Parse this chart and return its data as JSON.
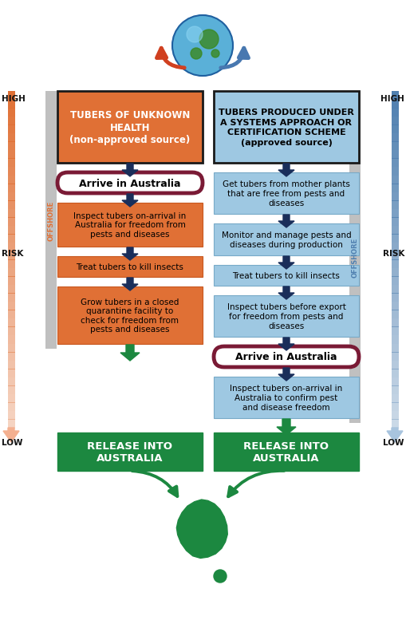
{
  "fig_width": 5.09,
  "fig_height": 8.03,
  "bg_color": "#ffffff",
  "col1_header": "TUBERS OF UNKNOWN\nHEALTH\n(non-approved source)",
  "col2_header": "TUBERS PRODUCED UNDER\nA SYSTEMS APPROACH OR\nCERTIFICATION SCHEME\n(approved source)",
  "col1_header_bg": "#e07035",
  "col1_header_border": "#1a1a1a",
  "col2_header_bg": "#9ec8e2",
  "col2_header_border": "#1a1a1a",
  "arrive_border": "#7a1a35",
  "arrive_text": "Arrive in Australia",
  "col1_steps": [
    "Inspect tubers on-arrival in\nAustralia for freedom from\npests and diseases",
    "Treat tubers to kill insects",
    "Grow tubers in a closed\nquarantine facility to\ncheck for freedom from\npests and diseases"
  ],
  "col2_steps": [
    "Get tubers from mother plants\nthat are free from pests and\ndiseases",
    "Monitor and manage pests and\ndiseases during production",
    "Treat tubers to kill insects",
    "Inspect tubers before export\nfor freedom from pests and\ndiseases",
    "Inspect tubers on-arrival in\nAustralia to confirm pest\nand disease freedom"
  ],
  "col1_step_bg": "#e07035",
  "col2_step_bg": "#9ec8e2",
  "col1_step_border": "#c85820",
  "col2_step_border": "#78aac8",
  "release_bg": "#1c8840",
  "release_text": "RELEASE INTO\nAUSTRALIA",
  "release_text_color": "#ffffff",
  "arrow_color": "#1a2e5a",
  "offshore_label": "OFFSHORE",
  "offshore_color_left": "#e07035",
  "offshore_color_right": "#5080b0",
  "offshore_bg": "#c0c0c0",
  "risk_left_color": "#e07035",
  "risk_right_color": "#5080b0",
  "high_low_color": "#111111",
  "green_color": "#1c8840",
  "australia_color": "#1c8840",
  "globe_color": "#5ab0d8",
  "globe_land": "#3a8820",
  "globe_outline": "#2060a0",
  "globe_shine": "#90d8f5",
  "curved_arrow_left": "#d04020",
  "curved_arrow_right": "#4878b0"
}
